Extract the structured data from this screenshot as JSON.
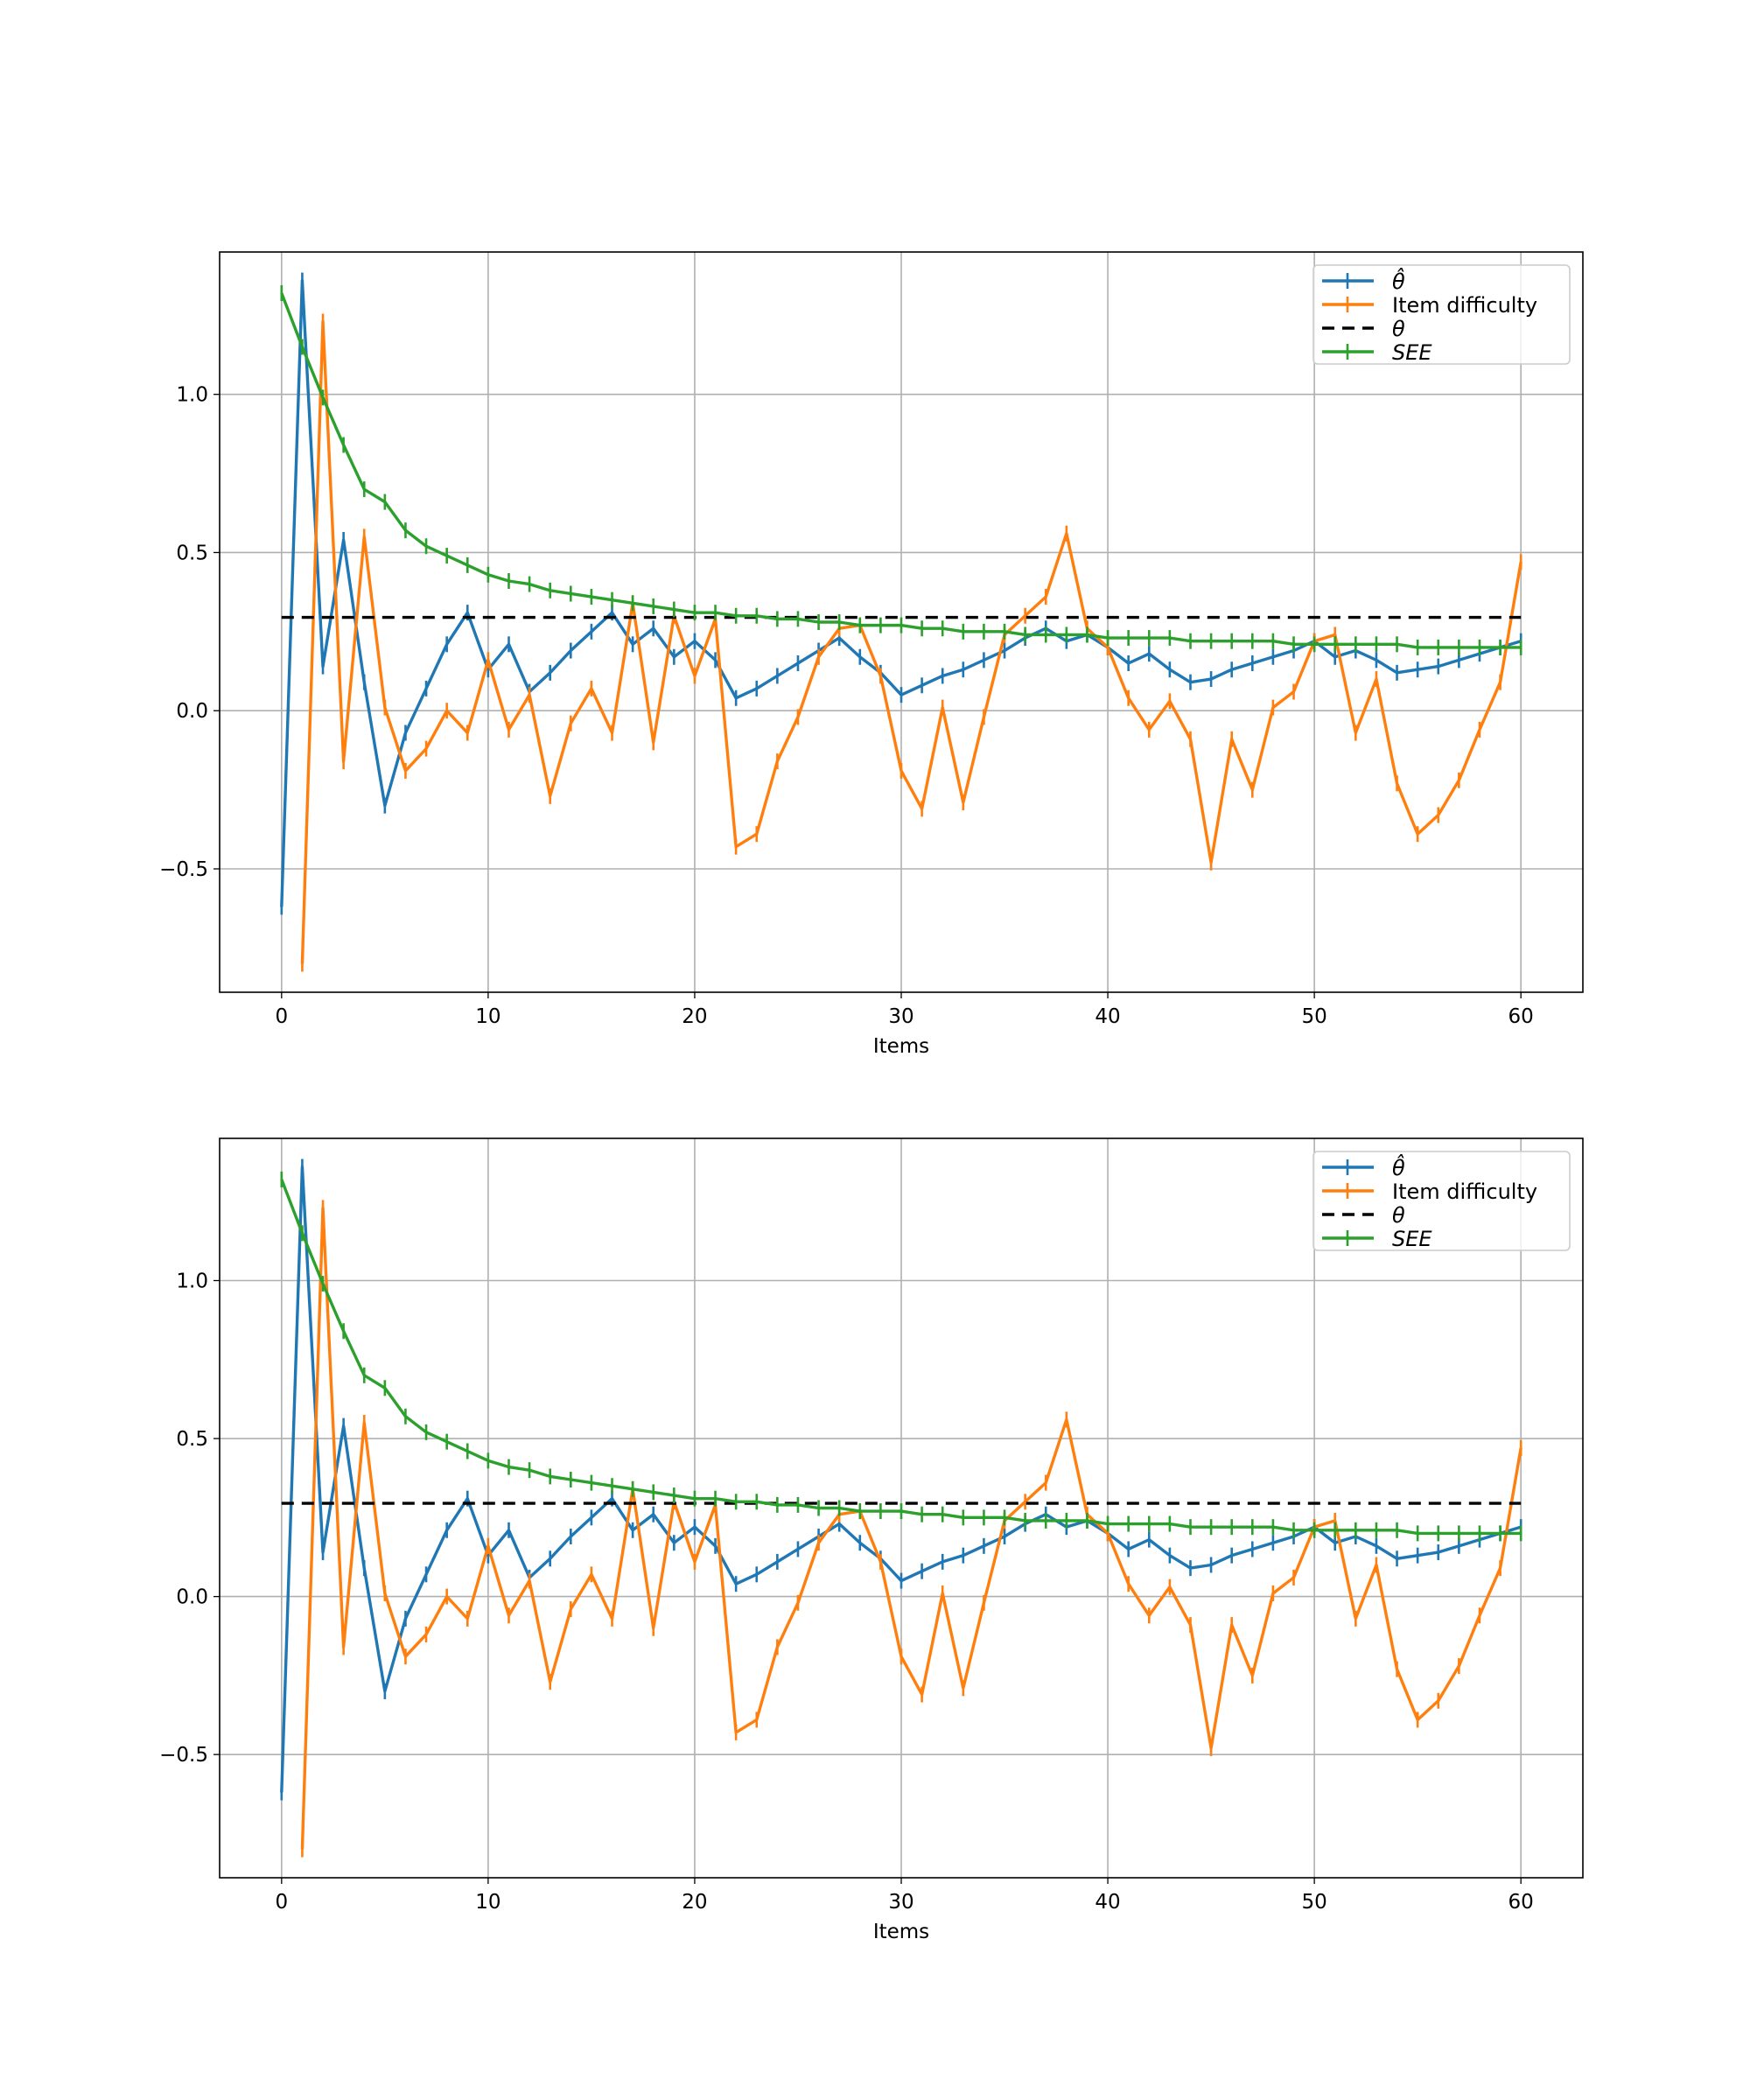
{
  "chart_data": [
    {
      "type": "line",
      "title": "",
      "xlabel": "Items",
      "ylabel": "",
      "xlim": [
        -3,
        63
      ],
      "ylim": [
        -0.89,
        1.45
      ],
      "grid": true,
      "legend_position": "top-right",
      "xticks": [
        "0",
        "10",
        "20",
        "30",
        "40",
        "50",
        "60"
      ],
      "xtick_values": [
        0,
        10,
        20,
        30,
        40,
        50,
        60
      ],
      "yticks": [
        "−0.5",
        "0.0",
        "0.5",
        "1.0"
      ],
      "ytick_values": [
        -0.5,
        0,
        0.5,
        1.0
      ],
      "series": [
        {
          "name": "θ̂",
          "color": "#1f77b4",
          "style": "solid-plus",
          "x_start": 0,
          "values": [
            -0.62,
            1.36,
            0.14,
            0.54,
            0.09,
            -0.3,
            -0.07,
            0.07,
            0.21,
            0.31,
            0.13,
            0.21,
            0.06,
            0.12,
            0.19,
            0.25,
            0.31,
            0.21,
            0.26,
            0.17,
            0.22,
            0.16,
            0.04,
            0.07,
            0.11,
            0.15,
            0.19,
            0.23,
            0.17,
            0.12,
            0.05,
            0.08,
            0.11,
            0.13,
            0.16,
            0.19,
            0.23,
            0.26,
            0.22,
            0.24,
            0.2,
            0.15,
            0.18,
            0.13,
            0.09,
            0.1,
            0.13,
            0.15,
            0.17,
            0.19,
            0.22,
            0.17,
            0.19,
            0.16,
            0.12,
            0.13,
            0.14,
            0.16,
            0.18,
            0.2,
            0.22
          ]
        },
        {
          "name": "Item difficulty",
          "color": "#ff7f0e",
          "style": "solid-plus",
          "x_start": 1,
          "values": [
            -0.8,
            1.23,
            -0.16,
            0.55,
            0.01,
            -0.19,
            -0.12,
            0.0,
            -0.07,
            0.16,
            -0.06,
            0.05,
            -0.27,
            -0.04,
            0.07,
            -0.07,
            0.34,
            -0.1,
            0.3,
            0.11,
            0.29,
            -0.43,
            -0.39,
            -0.16,
            -0.02,
            0.17,
            0.26,
            0.27,
            0.11,
            -0.19,
            -0.31,
            0.01,
            -0.29,
            -0.02,
            0.24,
            0.3,
            0.36,
            0.56,
            0.26,
            0.2,
            0.04,
            -0.06,
            0.03,
            -0.09,
            -0.48,
            -0.09,
            -0.25,
            0.01,
            0.06,
            0.22,
            0.24,
            -0.07,
            0.1,
            -0.23,
            -0.39,
            -0.33,
            -0.22,
            -0.06,
            0.09,
            0.47
          ]
        },
        {
          "name": "θ",
          "color": "#000000",
          "style": "dashed",
          "x_start": 0,
          "x": [
            0,
            60
          ],
          "values": [
            0.295,
            0.295
          ]
        },
        {
          "name": "SEE",
          "color": "#2ca02c",
          "style": "solid-plus",
          "x_start": 0,
          "values": [
            1.32,
            1.15,
            0.99,
            0.84,
            0.7,
            0.66,
            0.57,
            0.52,
            0.49,
            0.46,
            0.43,
            0.41,
            0.4,
            0.38,
            0.37,
            0.36,
            0.35,
            0.34,
            0.33,
            0.32,
            0.31,
            0.31,
            0.3,
            0.3,
            0.29,
            0.29,
            0.28,
            0.28,
            0.27,
            0.27,
            0.27,
            0.26,
            0.26,
            0.25,
            0.25,
            0.25,
            0.24,
            0.24,
            0.24,
            0.24,
            0.23,
            0.23,
            0.23,
            0.23,
            0.22,
            0.22,
            0.22,
            0.22,
            0.22,
            0.21,
            0.21,
            0.21,
            0.21,
            0.21,
            0.21,
            0.2,
            0.2,
            0.2,
            0.2,
            0.2,
            0.2
          ]
        }
      ]
    },
    {
      "type": "line",
      "title": "",
      "xlabel": "Items",
      "ylabel": "",
      "xlim": [
        -3,
        63
      ],
      "ylim": [
        -0.89,
        1.45
      ],
      "grid": true,
      "legend_position": "top-right",
      "xticks": [
        "0",
        "10",
        "20",
        "30",
        "40",
        "50",
        "60"
      ],
      "xtick_values": [
        0,
        10,
        20,
        30,
        40,
        50,
        60
      ],
      "yticks": [
        "−0.5",
        "0.0",
        "0.5",
        "1.0"
      ],
      "ytick_values": [
        -0.5,
        0,
        0.5,
        1.0
      ],
      "series": [
        {
          "name": "θ̂",
          "color": "#1f77b4",
          "style": "solid-plus",
          "x_start": 0,
          "values": [
            -0.62,
            1.36,
            0.14,
            0.54,
            0.09,
            -0.3,
            -0.07,
            0.07,
            0.21,
            0.31,
            0.13,
            0.21,
            0.06,
            0.12,
            0.19,
            0.25,
            0.31,
            0.21,
            0.26,
            0.17,
            0.22,
            0.16,
            0.04,
            0.07,
            0.11,
            0.15,
            0.19,
            0.23,
            0.17,
            0.12,
            0.05,
            0.08,
            0.11,
            0.13,
            0.16,
            0.19,
            0.23,
            0.26,
            0.22,
            0.24,
            0.2,
            0.15,
            0.18,
            0.13,
            0.09,
            0.1,
            0.13,
            0.15,
            0.17,
            0.19,
            0.22,
            0.17,
            0.19,
            0.16,
            0.12,
            0.13,
            0.14,
            0.16,
            0.18,
            0.2,
            0.22
          ]
        },
        {
          "name": "Item difficulty",
          "color": "#ff7f0e",
          "style": "solid-plus",
          "x_start": 1,
          "values": [
            -0.8,
            1.23,
            -0.16,
            0.55,
            0.01,
            -0.19,
            -0.12,
            0.0,
            -0.07,
            0.16,
            -0.06,
            0.05,
            -0.27,
            -0.04,
            0.07,
            -0.07,
            0.34,
            -0.1,
            0.3,
            0.11,
            0.29,
            -0.43,
            -0.39,
            -0.16,
            -0.02,
            0.17,
            0.26,
            0.27,
            0.11,
            -0.19,
            -0.31,
            0.01,
            -0.29,
            -0.02,
            0.24,
            0.3,
            0.36,
            0.56,
            0.26,
            0.2,
            0.04,
            -0.06,
            0.03,
            -0.09,
            -0.48,
            -0.09,
            -0.25,
            0.01,
            0.06,
            0.22,
            0.24,
            -0.07,
            0.1,
            -0.23,
            -0.39,
            -0.33,
            -0.22,
            -0.06,
            0.09,
            0.47
          ]
        },
        {
          "name": "θ",
          "color": "#000000",
          "style": "dashed",
          "x_start": 0,
          "x": [
            0,
            60
          ],
          "values": [
            0.295,
            0.295
          ]
        },
        {
          "name": "SEE",
          "color": "#2ca02c",
          "style": "solid-plus",
          "x_start": 0,
          "values": [
            1.32,
            1.15,
            0.99,
            0.84,
            0.7,
            0.66,
            0.57,
            0.52,
            0.49,
            0.46,
            0.43,
            0.41,
            0.4,
            0.38,
            0.37,
            0.36,
            0.35,
            0.34,
            0.33,
            0.32,
            0.31,
            0.31,
            0.3,
            0.3,
            0.29,
            0.29,
            0.28,
            0.28,
            0.27,
            0.27,
            0.27,
            0.26,
            0.26,
            0.25,
            0.25,
            0.25,
            0.24,
            0.24,
            0.24,
            0.24,
            0.23,
            0.23,
            0.23,
            0.23,
            0.22,
            0.22,
            0.22,
            0.22,
            0.22,
            0.21,
            0.21,
            0.21,
            0.21,
            0.21,
            0.21,
            0.2,
            0.2,
            0.2,
            0.2,
            0.2,
            0.2
          ]
        }
      ]
    }
  ]
}
